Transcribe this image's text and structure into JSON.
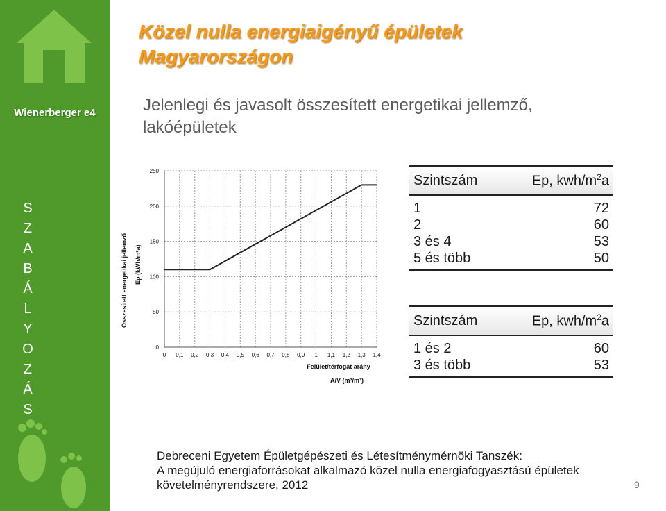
{
  "sidebar": {
    "brand": "Wienerberger e4",
    "vertical_letters": [
      "S",
      "Z",
      "A",
      "B",
      "Á",
      "L",
      "Y",
      "O",
      "Z",
      "Á",
      "S"
    ]
  },
  "title_line1": "Közel nulla energiaigényű épületek",
  "title_line2": "Magyarországon",
  "subtitle_line1": "Jelenlegi és javasolt összesített energetikai jellemző,",
  "subtitle_line2": "lakóépületek",
  "chart_data": {
    "type": "line",
    "ylabel_line1": "Összesített energetikai jellemző",
    "ylabel_line2": "Ep (kWh/m²a)",
    "xlabel_line1": "Felület/térfogat arány",
    "xlabel_line2": "A/V (m²/m³)",
    "x_ticks": [
      "0",
      "0,1",
      "0,2",
      "0,3",
      "0,4",
      "0,5",
      "0,6",
      "0,7",
      "0,8",
      "0,9",
      "1",
      "1,1",
      "1,2",
      "1,3",
      "1,4"
    ],
    "y_ticks": [
      "0",
      "50",
      "100",
      "150",
      "200",
      "250"
    ],
    "xlim": [
      0,
      1.4
    ],
    "ylim": [
      0,
      250
    ],
    "grid": true,
    "series": [
      {
        "x": [
          0,
          0.3,
          1.3,
          1.4
        ],
        "y": [
          110,
          110,
          230,
          230
        ]
      }
    ]
  },
  "table1": {
    "header_left": "Szintszám",
    "header_right": "Ep, kwh/m",
    "header_sup": "2",
    "header_suffix": "a",
    "rows": [
      {
        "level": "1",
        "ep": "72"
      },
      {
        "level": "2",
        "ep": "60"
      },
      {
        "level": "3 és 4",
        "ep": "53"
      },
      {
        "level": "5 és több",
        "ep": "50"
      }
    ]
  },
  "table2": {
    "header_left": "Szintszám",
    "header_right": "Ep, kwh/m",
    "header_sup": "2",
    "header_suffix": "a",
    "rows": [
      {
        "level": "1 és 2",
        "ep": "60"
      },
      {
        "level": "3 és több",
        "ep": "53"
      }
    ]
  },
  "footer_line1": "Debreceni Egyetem Épületgépészeti és Létesítménymérnöki Tanszék:",
  "footer_line2": "A megújuló energiaforrásokat alkalmazó közel nulla energiafogyasztású épületek",
  "footer_line3": "követelményrendszere, 2012",
  "page_number": "9",
  "colors": {
    "sidebar": "#4f9a2a",
    "title": "#f39a1a",
    "subtitle": "#5a5a5a"
  }
}
